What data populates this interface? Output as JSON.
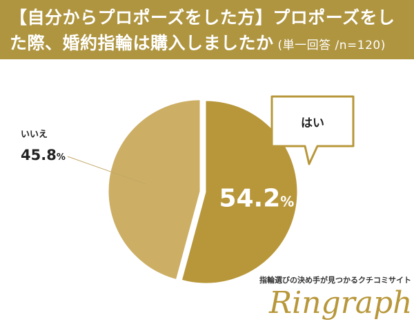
{
  "header": {
    "title_line1": "【自分からプロポーズをした方】プロポーズをし",
    "title_line2": "た際、婚約指輪は購入しましたか",
    "note": "(単一回答 /n=120)"
  },
  "chart_data": {
    "type": "pie",
    "slices": [
      {
        "label": "はい",
        "value": 54.2,
        "display": "54.2",
        "unit": "%",
        "color": "#b8973a"
      },
      {
        "label": "いいえ",
        "value": 45.8,
        "display": "45.8",
        "unit": "%",
        "color": "#ccae65"
      }
    ],
    "slice_order": "clockwise from top"
  },
  "branding": {
    "tagline": "指輪選びの決め手が見つかるクチコミサイト",
    "logo": "Ringraph"
  },
  "colors": {
    "header_bg": "#af9540",
    "accent": "#b8973a"
  }
}
